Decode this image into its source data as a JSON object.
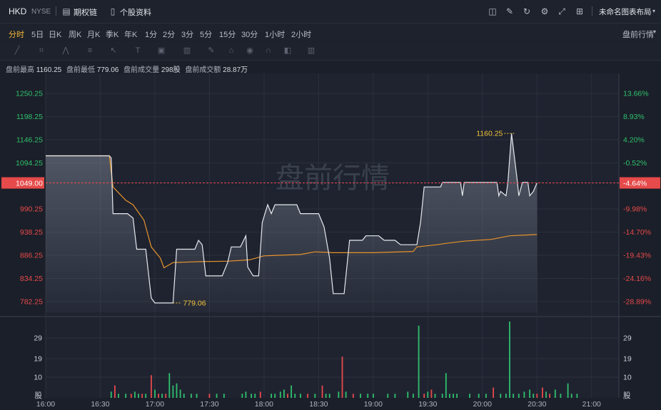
{
  "header": {
    "symbol": "HKD",
    "exchange": "NYSE",
    "options_chain": "期权链",
    "stock_profile": "个股资料",
    "layout_name": "未命名图表布局"
  },
  "periods": [
    "分时",
    "5日",
    "日K",
    "周K",
    "月K",
    "季K",
    "年K",
    "1分",
    "2分",
    "3分",
    "5分",
    "15分",
    "30分",
    "1小时",
    "2小时"
  ],
  "active_period": "分时",
  "session_selector": "盘前行情",
  "stats": {
    "high_label": "盘前最高",
    "high": "1160.25",
    "low_label": "盘前最低",
    "low": "779.06",
    "vol_label": "盘前成交量",
    "vol": "298股",
    "amt_label": "盘前成交额",
    "amt": "28.87万"
  },
  "watermark": "盘前行情",
  "colors": {
    "up": "#2fc06c",
    "down": "#e64a4a",
    "price_line": "#e6e9ee",
    "avg_line": "#e6932a",
    "current": "#e64a4a",
    "label_yellow": "#f3c33b"
  },
  "chart_data": {
    "type": "line",
    "price_axis": {
      "ticks": [
        "1250.25",
        "1198.25",
        "1146.25",
        "1094.25",
        "990.25",
        "938.25",
        "886.25",
        "834.25",
        "782.25"
      ],
      "tick_values": [
        1250.25,
        1198.25,
        1146.25,
        1094.25,
        990.25,
        938.25,
        886.25,
        834.25,
        782.25
      ],
      "range": [
        758,
        1276
      ]
    },
    "pct_axis": {
      "ticks": [
        "13.66%",
        "8.93%",
        "4.20%",
        "-0.52%",
        "-9.98%",
        "-14.70%",
        "-19.43%",
        "-24.16%",
        "-28.89%"
      ]
    },
    "current": {
      "price": "1049.00",
      "pct": "-4.64%",
      "value": 1049.0
    },
    "x_axis": {
      "ticks": [
        "16:00",
        "16:30",
        "17:00",
        "17:30",
        "18:00",
        "18:30",
        "19:00",
        "19:30",
        "20:00",
        "20:30",
        "21:00"
      ],
      "range_minutes": [
        960,
        1275
      ]
    },
    "annotations": [
      {
        "label": "1160.25",
        "time": 1217.5,
        "value": 1160.25
      },
      {
        "label": "779.06",
        "time": 1030,
        "value": 779.06
      }
    ],
    "price_series": {
      "name": "",
      "points": [
        [
          960,
          1110
        ],
        [
          995,
          1110
        ],
        [
          996,
          1105
        ],
        [
          997,
          980
        ],
        [
          1005,
          980
        ],
        [
          1008,
          970
        ],
        [
          1010,
          900
        ],
        [
          1015,
          900
        ],
        [
          1018,
          790
        ],
        [
          1020,
          779
        ],
        [
          1030,
          779
        ],
        [
          1032,
          900
        ],
        [
          1042,
          900
        ],
        [
          1044,
          920
        ],
        [
          1046,
          910
        ],
        [
          1048,
          840
        ],
        [
          1057,
          840
        ],
        [
          1060,
          870
        ],
        [
          1062,
          905
        ],
        [
          1067,
          905
        ],
        [
          1070,
          930
        ],
        [
          1071,
          860
        ],
        [
          1074,
          840
        ],
        [
          1077,
          840
        ],
        [
          1079,
          960
        ],
        [
          1082,
          1000
        ],
        [
          1084,
          980
        ],
        [
          1086,
          1000
        ],
        [
          1098,
          1000
        ],
        [
          1100,
          980
        ],
        [
          1110,
          980
        ],
        [
          1113,
          950
        ],
        [
          1116,
          880
        ],
        [
          1118,
          800
        ],
        [
          1124,
          800
        ],
        [
          1127,
          920
        ],
        [
          1134,
          920
        ],
        [
          1136,
          930
        ],
        [
          1143,
          930
        ],
        [
          1146,
          920
        ],
        [
          1152,
          920
        ],
        [
          1155,
          910
        ],
        [
          1164,
          910
        ],
        [
          1166,
          960
        ],
        [
          1167,
          1000
        ],
        [
          1168,
          1040
        ],
        [
          1177,
          1040
        ],
        [
          1178,
          1050
        ],
        [
          1188,
          1050
        ],
        [
          1189,
          1020
        ],
        [
          1190,
          1050
        ],
        [
          1208,
          1050
        ],
        [
          1209,
          1020
        ],
        [
          1210,
          1030
        ],
        [
          1213,
          1020
        ],
        [
          1214,
          1050
        ],
        [
          1216,
          1160.25
        ],
        [
          1219,
          1060
        ],
        [
          1220,
          1020
        ],
        [
          1222,
          1050
        ],
        [
          1225,
          1050
        ],
        [
          1226,
          1020
        ],
        [
          1228,
          1030
        ],
        [
          1230,
          1049
        ]
      ]
    },
    "avg_series": {
      "name": "",
      "points": [
        [
          960,
          1110
        ],
        [
          995,
          1110
        ],
        [
          997,
          1040
        ],
        [
          1004,
          1010
        ],
        [
          1008,
          1000
        ],
        [
          1014,
          965
        ],
        [
          1018,
          905
        ],
        [
          1023,
          880
        ],
        [
          1025,
          858
        ],
        [
          1030,
          870
        ],
        [
          1045,
          872
        ],
        [
          1060,
          873
        ],
        [
          1072,
          876
        ],
        [
          1080,
          885
        ],
        [
          1100,
          888
        ],
        [
          1108,
          894
        ],
        [
          1118,
          892
        ],
        [
          1140,
          892
        ],
        [
          1162,
          895
        ],
        [
          1164,
          905
        ],
        [
          1175,
          910
        ],
        [
          1180,
          913
        ],
        [
          1190,
          918
        ],
        [
          1205,
          922
        ],
        [
          1215,
          930
        ],
        [
          1225,
          932
        ],
        [
          1230,
          933
        ]
      ]
    },
    "volume": {
      "axis_ticks": [
        "29",
        "19",
        "10",
        "股"
      ],
      "tick_values": [
        29,
        19,
        10,
        0
      ],
      "max": 38,
      "bars": [
        [
          996,
          3,
          "up"
        ],
        [
          998,
          6,
          "down"
        ],
        [
          1000,
          2,
          "up"
        ],
        [
          1004,
          2,
          "up"
        ],
        [
          1007,
          2,
          "down"
        ],
        [
          1009,
          3,
          "up"
        ],
        [
          1011,
          2,
          "up"
        ],
        [
          1013,
          2,
          "down"
        ],
        [
          1015,
          2,
          "up"
        ],
        [
          1018,
          11,
          "down"
        ],
        [
          1020,
          4,
          "up"
        ],
        [
          1022,
          2,
          "down"
        ],
        [
          1024,
          2,
          "up"
        ],
        [
          1026,
          2,
          "down"
        ],
        [
          1028,
          12,
          "up"
        ],
        [
          1030,
          6,
          "up"
        ],
        [
          1032,
          7,
          "up"
        ],
        [
          1034,
          4,
          "up"
        ],
        [
          1036,
          2,
          "up"
        ],
        [
          1040,
          2,
          "up"
        ],
        [
          1043,
          2,
          "up"
        ],
        [
          1050,
          2,
          "down"
        ],
        [
          1054,
          2,
          "up"
        ],
        [
          1058,
          2,
          "up"
        ],
        [
          1068,
          2,
          "up"
        ],
        [
          1070,
          3,
          "up"
        ],
        [
          1073,
          2,
          "up"
        ],
        [
          1075,
          2,
          "up"
        ],
        [
          1078,
          3,
          "down"
        ],
        [
          1084,
          2,
          "up"
        ],
        [
          1086,
          2,
          "up"
        ],
        [
          1089,
          3,
          "up"
        ],
        [
          1091,
          4,
          "up"
        ],
        [
          1093,
          2,
          "down"
        ],
        [
          1095,
          6,
          "up"
        ],
        [
          1097,
          2,
          "up"
        ],
        [
          1100,
          2,
          "up"
        ],
        [
          1104,
          2,
          "down"
        ],
        [
          1108,
          2,
          "up"
        ],
        [
          1112,
          6,
          "down"
        ],
        [
          1114,
          2,
          "up"
        ],
        [
          1116,
          2,
          "up"
        ],
        [
          1121,
          3,
          "up"
        ],
        [
          1123,
          20,
          "down"
        ],
        [
          1125,
          3,
          "up"
        ],
        [
          1129,
          2,
          "down"
        ],
        [
          1133,
          2,
          "up"
        ],
        [
          1137,
          2,
          "up"
        ],
        [
          1140,
          2,
          "up"
        ],
        [
          1148,
          2,
          "up"
        ],
        [
          1152,
          2,
          "up"
        ],
        [
          1159,
          3,
          "up"
        ],
        [
          1162,
          2,
          "up"
        ],
        [
          1165,
          35,
          "up"
        ],
        [
          1168,
          2,
          "down"
        ],
        [
          1170,
          3,
          "up"
        ],
        [
          1172,
          4,
          "down"
        ],
        [
          1174,
          2,
          "up"
        ],
        [
          1178,
          2,
          "up"
        ],
        [
          1180,
          12,
          "up"
        ],
        [
          1182,
          2,
          "up"
        ],
        [
          1184,
          2,
          "up"
        ],
        [
          1186,
          2,
          "up"
        ],
        [
          1193,
          2,
          "up"
        ],
        [
          1198,
          2,
          "up"
        ],
        [
          1202,
          2,
          "up"
        ],
        [
          1206,
          5,
          "down"
        ],
        [
          1210,
          2,
          "up"
        ],
        [
          1213,
          2,
          "up"
        ],
        [
          1215,
          37,
          "up"
        ],
        [
          1217,
          2,
          "up"
        ],
        [
          1220,
          2,
          "up"
        ],
        [
          1223,
          3,
          "up"
        ],
        [
          1226,
          4,
          "up"
        ],
        [
          1228,
          2,
          "up"
        ],
        [
          1230,
          2,
          "down"
        ],
        [
          1233,
          5,
          "down"
        ],
        [
          1235,
          3,
          "up"
        ],
        [
          1237,
          2,
          "down"
        ],
        [
          1240,
          4,
          "up"
        ],
        [
          1243,
          2,
          "up"
        ],
        [
          1247,
          7,
          "up"
        ],
        [
          1249,
          2,
          "up"
        ],
        [
          1252,
          2,
          "up"
        ]
      ]
    }
  }
}
